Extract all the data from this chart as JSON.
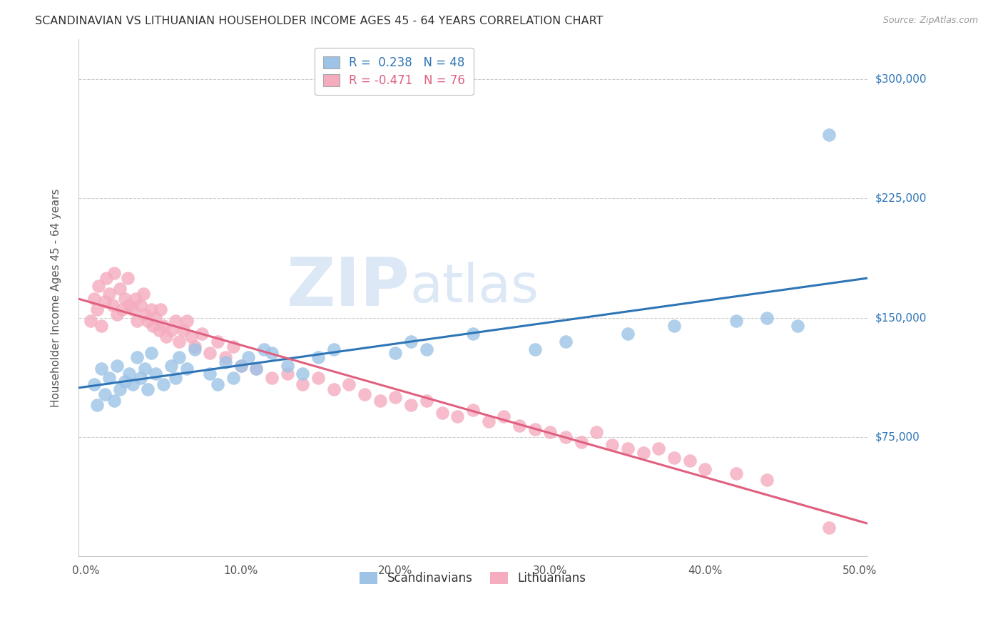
{
  "title": "SCANDINAVIAN VS LITHUANIAN HOUSEHOLDER INCOME AGES 45 - 64 YEARS CORRELATION CHART",
  "source": "Source: ZipAtlas.com",
  "ylabel": "Householder Income Ages 45 - 64 years",
  "xlabel_ticks": [
    "0.0%",
    "10.0%",
    "20.0%",
    "30.0%",
    "40.0%",
    "50.0%"
  ],
  "xlabel_vals": [
    0.0,
    0.1,
    0.2,
    0.3,
    0.4,
    0.5
  ],
  "ytick_labels": [
    "$75,000",
    "$150,000",
    "$225,000",
    "$300,000"
  ],
  "ytick_vals": [
    75000,
    150000,
    225000,
    300000
  ],
  "ylim": [
    0,
    325000
  ],
  "xlim": [
    -0.005,
    0.505
  ],
  "legend_label1": "R =  0.238   N = 48",
  "legend_label2": "R = -0.471   N = 76",
  "legend_bottom_label1": "Scandinavians",
  "legend_bottom_label2": "Lithuanians",
  "color_blue": "#9DC3E6",
  "color_pink": "#F4ACBE",
  "color_blue_line": "#2E75B6",
  "color_pink_line": "#E06080",
  "watermark_zip": "ZIP",
  "watermark_atlas": "atlas",
  "scand_x": [
    0.005,
    0.007,
    0.01,
    0.012,
    0.015,
    0.018,
    0.02,
    0.022,
    0.025,
    0.028,
    0.03,
    0.033,
    0.035,
    0.038,
    0.04,
    0.042,
    0.045,
    0.05,
    0.055,
    0.058,
    0.06,
    0.065,
    0.07,
    0.08,
    0.085,
    0.09,
    0.095,
    0.1,
    0.105,
    0.11,
    0.115,
    0.12,
    0.13,
    0.14,
    0.15,
    0.16,
    0.2,
    0.21,
    0.22,
    0.25,
    0.29,
    0.31,
    0.35,
    0.38,
    0.42,
    0.44,
    0.46,
    0.48
  ],
  "scand_y": [
    108000,
    95000,
    118000,
    102000,
    112000,
    98000,
    120000,
    105000,
    110000,
    115000,
    108000,
    125000,
    112000,
    118000,
    105000,
    128000,
    115000,
    108000,
    120000,
    112000,
    125000,
    118000,
    130000,
    115000,
    108000,
    122000,
    112000,
    120000,
    125000,
    118000,
    130000,
    128000,
    120000,
    115000,
    125000,
    130000,
    128000,
    135000,
    130000,
    140000,
    130000,
    135000,
    140000,
    145000,
    148000,
    150000,
    145000,
    265000
  ],
  "lith_x": [
    0.003,
    0.005,
    0.007,
    0.008,
    0.01,
    0.012,
    0.013,
    0.015,
    0.017,
    0.018,
    0.02,
    0.022,
    0.023,
    0.025,
    0.027,
    0.028,
    0.03,
    0.032,
    0.033,
    0.035,
    0.037,
    0.038,
    0.04,
    0.042,
    0.043,
    0.045,
    0.047,
    0.048,
    0.05,
    0.052,
    0.055,
    0.058,
    0.06,
    0.063,
    0.065,
    0.068,
    0.07,
    0.075,
    0.08,
    0.085,
    0.09,
    0.095,
    0.1,
    0.11,
    0.12,
    0.13,
    0.14,
    0.15,
    0.16,
    0.17,
    0.18,
    0.19,
    0.2,
    0.21,
    0.22,
    0.23,
    0.24,
    0.25,
    0.26,
    0.27,
    0.28,
    0.29,
    0.3,
    0.31,
    0.32,
    0.33,
    0.34,
    0.35,
    0.36,
    0.37,
    0.38,
    0.39,
    0.4,
    0.42,
    0.44,
    0.48
  ],
  "lith_y": [
    148000,
    162000,
    155000,
    170000,
    145000,
    160000,
    175000,
    165000,
    158000,
    178000,
    152000,
    168000,
    155000,
    162000,
    175000,
    158000,
    155000,
    162000,
    148000,
    158000,
    165000,
    152000,
    148000,
    155000,
    145000,
    150000,
    142000,
    155000,
    145000,
    138000,
    142000,
    148000,
    135000,
    142000,
    148000,
    138000,
    132000,
    140000,
    128000,
    135000,
    125000,
    132000,
    120000,
    118000,
    112000,
    115000,
    108000,
    112000,
    105000,
    108000,
    102000,
    98000,
    100000,
    95000,
    98000,
    90000,
    88000,
    92000,
    85000,
    88000,
    82000,
    80000,
    78000,
    75000,
    72000,
    78000,
    70000,
    68000,
    65000,
    68000,
    62000,
    60000,
    55000,
    52000,
    48000,
    18000
  ]
}
